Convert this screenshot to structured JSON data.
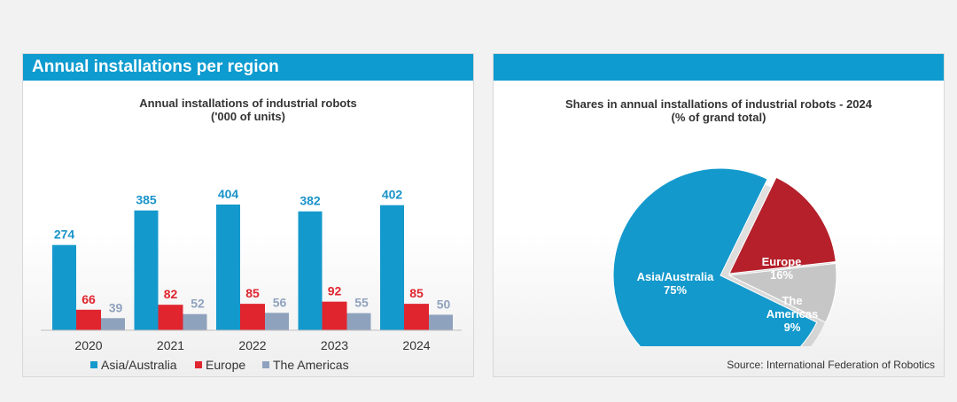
{
  "left_panel": {
    "header": "Annual installations per region"
  },
  "right_panel": {
    "header": "",
    "source": "Source: International Federation of Robotics"
  },
  "colors": {
    "asia": "#1499cc",
    "europe": "#e0252f",
    "americas": "#8fa2bd",
    "header": "#0e9bcf"
  },
  "chart_data": [
    {
      "type": "bar",
      "title": "Annual installations of industrial robots",
      "subtitle": "('000 of units)",
      "categories": [
        "2020",
        "2021",
        "2022",
        "2023",
        "2024"
      ],
      "series": [
        {
          "name": "Asia/Australia",
          "values": [
            274,
            385,
            404,
            382,
            402
          ]
        },
        {
          "name": "Europe",
          "values": [
            66,
            82,
            85,
            92,
            85
          ]
        },
        {
          "name": "The Americas",
          "values": [
            39,
            52,
            56,
            55,
            50
          ]
        }
      ],
      "ylim": [
        0,
        420
      ],
      "grid": false,
      "legend": "bottom"
    },
    {
      "type": "pie",
      "title": "Shares in annual installations of industrial robots - 2024",
      "subtitle": "(% of grand total)",
      "slices": [
        {
          "label": "Asia/Australia",
          "value": 75,
          "display": "75%"
        },
        {
          "label": "Europe",
          "value": 16,
          "display": "16%"
        },
        {
          "label": "The Americas",
          "value": 9,
          "display": "9%",
          "label_lines": [
            "The",
            "Americas"
          ]
        }
      ]
    }
  ]
}
